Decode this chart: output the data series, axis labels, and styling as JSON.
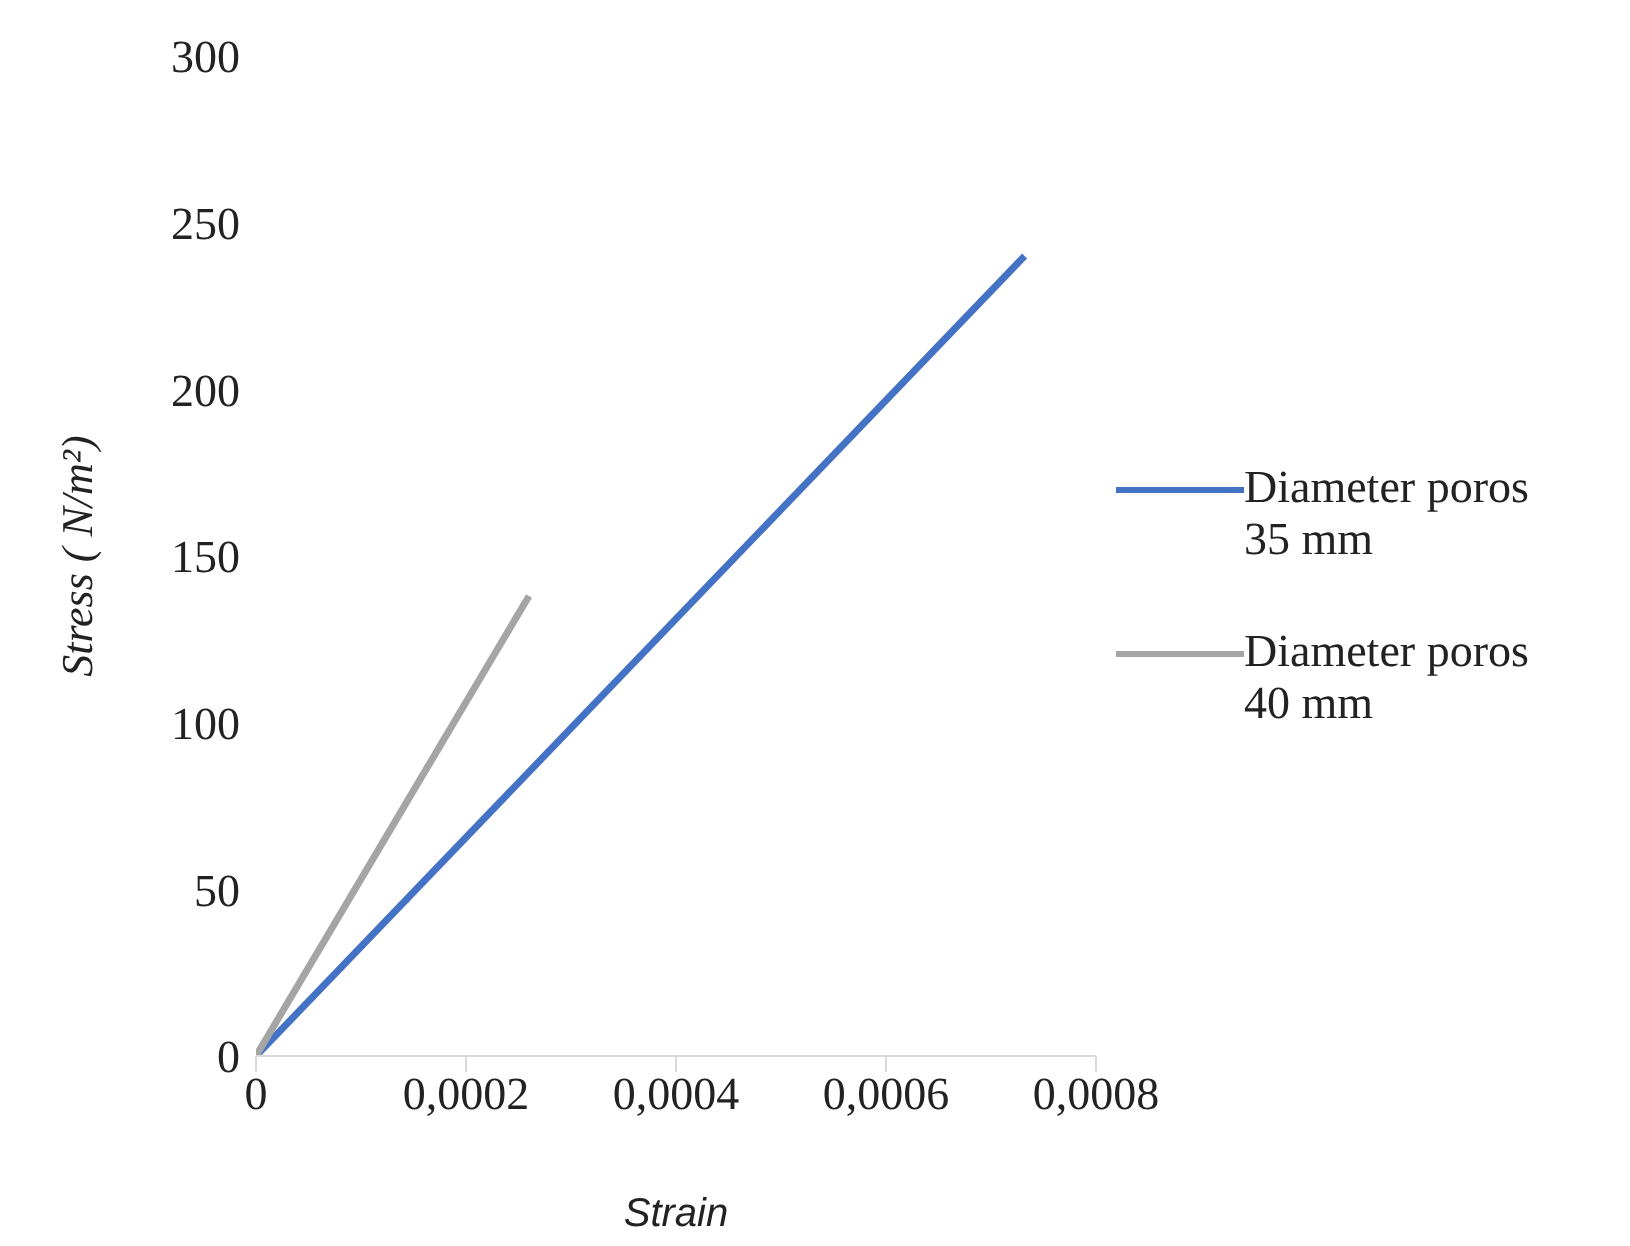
{
  "chart_data": {
    "type": "line",
    "xlabel": "Strain",
    "ylabel": "Stress ( N/m²)",
    "xlim": [
      0,
      0.0008
    ],
    "xticks": [
      0,
      {
        "value": 0.0002,
        "label": "0,0002"
      },
      {
        "value": 0.0004,
        "label": "0,0004"
      },
      {
        "value": 0.0006,
        "label": "0,0006"
      },
      {
        "value": 0.0008,
        "label": "0,0008"
      }
    ],
    "ylim": [
      0,
      300
    ],
    "yticks": [
      0,
      50,
      100,
      150,
      200,
      250,
      300
    ],
    "legend": "right",
    "marker": "none",
    "line_style": "solid",
    "series": [
      {
        "name": "Diameter poros 35 mm",
        "color": "#4472c4",
        "x": [
          0,
          0.000732
        ],
        "values": [
          0,
          240
        ]
      },
      {
        "name": "Diameter poros 40 mm",
        "color": "#a5a5a5",
        "x": [
          0,
          0.00026
        ],
        "values": [
          0,
          138
        ]
      }
    ]
  }
}
